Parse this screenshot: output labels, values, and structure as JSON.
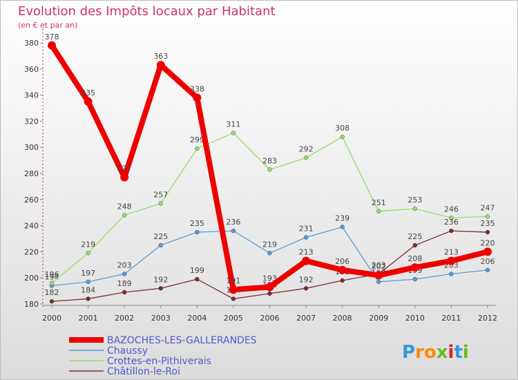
{
  "chart_data": {
    "type": "line",
    "title": "Evolution des Impôts locaux par Habitant",
    "subtitle": "(en € et par an)",
    "xlabel": "",
    "ylabel": "",
    "x": [
      "2000",
      "2001",
      "2002",
      "2003",
      "2004",
      "2005",
      "2006",
      "2007",
      "2008",
      "2009",
      "2010",
      "2011",
      "2012"
    ],
    "ylim": [
      180,
      380
    ],
    "yticks": [
      "180",
      "200",
      "220",
      "240",
      "260",
      "280",
      "300",
      "320",
      "340",
      "360",
      "380"
    ],
    "grid": false,
    "legend": "bottom-left",
    "series": [
      {
        "name": "BAZOCHES-LES-GALLERANDES",
        "color": "#ee0000",
        "values": [
          378,
          335,
          277,
          363,
          338,
          191,
          193,
          213,
          206,
          202,
          208,
          213,
          220
        ],
        "highlight": true
      },
      {
        "name": "Chaussy",
        "color": "#5a9bd5",
        "values": [
          194,
          197,
          203,
          225,
          235,
          236,
          219,
          231,
          239,
          197,
          199,
          203,
          206
        ],
        "highlight": false
      },
      {
        "name": "Crottes-en-Pithiverais",
        "color": "#99dd66",
        "values": [
          196,
          219,
          248,
          257,
          299,
          311,
          283,
          292,
          308,
          251,
          253,
          246,
          247
        ],
        "highlight": false
      },
      {
        "name": "Châtillon-le-Roi",
        "color": "#7a2e2e",
        "values": [
          182,
          184,
          189,
          192,
          199,
          184,
          188,
          192,
          198,
          203,
          225,
          236,
          235
        ],
        "highlight": false
      }
    ]
  },
  "brand": {
    "logo_text": "Proxiti"
  },
  "colors": {
    "title": "#cc3366",
    "axis": "#555555",
    "legend_text": "#5555cc"
  }
}
